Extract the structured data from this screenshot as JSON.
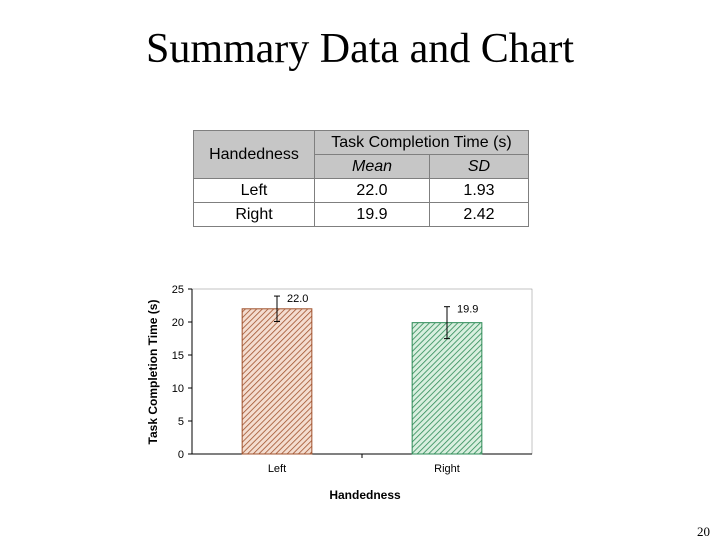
{
  "slide": {
    "title": "Summary Data and Chart",
    "page_number": "20"
  },
  "table": {
    "row_header": "Handedness",
    "group_header": "Task Completion Time (s)",
    "subheaders": [
      "Mean",
      "SD"
    ],
    "rows": [
      {
        "label": "Left",
        "mean": "22.0",
        "sd": "1.93"
      },
      {
        "label": "Right",
        "mean": "19.9",
        "sd": "2.42"
      }
    ]
  },
  "chart_data": {
    "type": "bar",
    "categories": [
      "Left",
      "Right"
    ],
    "values": [
      22.0,
      19.9
    ],
    "error": [
      1.93,
      2.42
    ],
    "data_labels": [
      "22.0",
      "19.9"
    ],
    "xlabel": "Handedness",
    "ylabel": "Task Completion Time (s)",
    "ylim": [
      0,
      25
    ],
    "yticks": [
      0,
      5,
      10,
      15,
      20,
      25
    ],
    "grid": false,
    "colors": [
      "#a0522d",
      "#2e8b57"
    ]
  }
}
